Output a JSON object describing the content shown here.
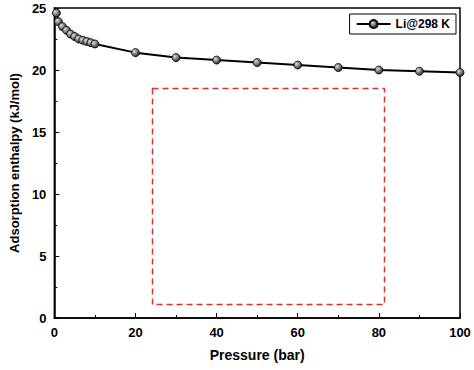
{
  "chart_data": {
    "type": "line",
    "x_label": "Pressure (bar)",
    "y_label": "Adsorption enthalpy (kJ/mol)",
    "xlim": [
      0,
      100
    ],
    "xticks": [
      0,
      20,
      40,
      60,
      80,
      100
    ],
    "ylim": [
      0,
      25
    ],
    "yticks": [
      0,
      5,
      10,
      15,
      20,
      25
    ],
    "legend": "upper right",
    "series": [
      {
        "name": "Li@298 K",
        "color": "#000000",
        "marker": "circle",
        "line_style": "solid",
        "x": [
          0.5,
          1,
          2,
          3,
          4,
          5,
          6,
          7,
          8,
          9,
          10,
          20,
          30,
          40,
          50,
          60,
          70,
          80,
          90,
          100
        ],
        "values": [
          24.6,
          23.9,
          23.5,
          23.2,
          22.9,
          22.7,
          22.5,
          22.4,
          22.3,
          22.2,
          22.1,
          21.4,
          21.0,
          20.8,
          20.6,
          20.4,
          20.2,
          20.0,
          19.9,
          19.8
        ]
      }
    ]
  }
}
